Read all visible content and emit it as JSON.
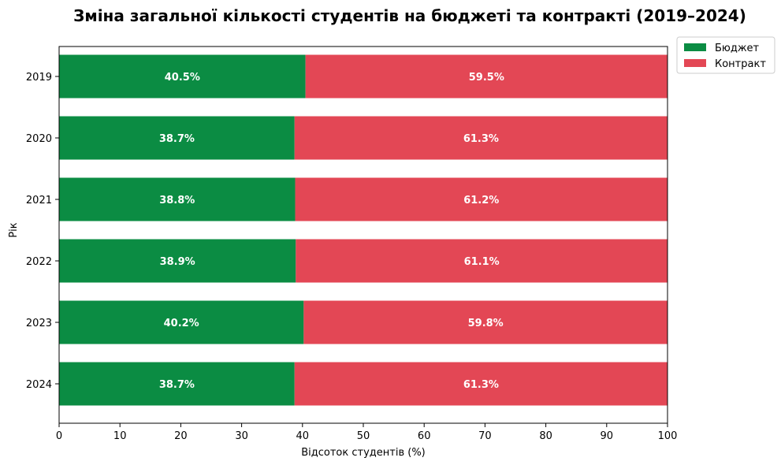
{
  "chart_data": {
    "type": "bar",
    "orientation": "horizontal",
    "stacked": true,
    "title": "Зміна загальної кількості студентів на бюджеті та контракті (2019–2024)",
    "xlabel": "Відсоток студентів (%)",
    "ylabel": "Рік",
    "xlim": [
      0,
      100
    ],
    "xticks": [
      0,
      10,
      20,
      30,
      40,
      50,
      60,
      70,
      80,
      90,
      100
    ],
    "categories": [
      "2019",
      "2020",
      "2021",
      "2022",
      "2023",
      "2024"
    ],
    "series": [
      {
        "name": "Бюджет",
        "color": "#0b8c43",
        "values": [
          40.5,
          38.7,
          38.8,
          38.9,
          40.2,
          38.7
        ],
        "labels": [
          "40.5%",
          "38.7%",
          "38.8%",
          "38.9%",
          "40.2%",
          "38.7%"
        ]
      },
      {
        "name": "Контракт",
        "color": "#e34755",
        "values": [
          59.5,
          61.3,
          61.2,
          61.1,
          59.8,
          61.3
        ],
        "labels": [
          "59.5%",
          "61.3%",
          "61.2%",
          "61.1%",
          "59.8%",
          "61.3%"
        ]
      }
    ],
    "legend": "outside-top-right",
    "grid": false
  }
}
